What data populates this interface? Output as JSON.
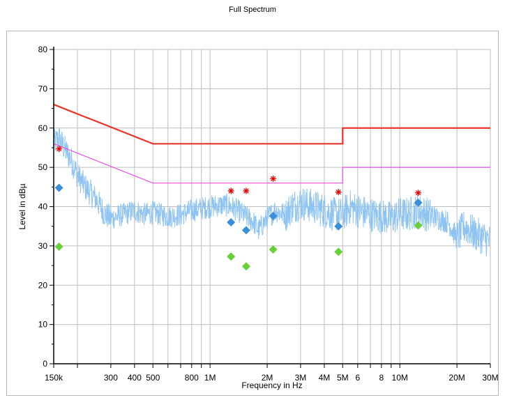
{
  "chart_data": {
    "type": "line",
    "title": "Full Spectrum",
    "xlabel": "Frequency in Hz",
    "ylabel": "Level in dBµ",
    "x_scale": "log",
    "xlim": [
      150000,
      30000000
    ],
    "ylim": [
      0,
      80
    ],
    "grid": true,
    "x_tick_labels": [
      {
        "f": 150000,
        "label": "150k"
      },
      {
        "f": 300000,
        "label": "300"
      },
      {
        "f": 400000,
        "label": "400"
      },
      {
        "f": 500000,
        "label": "500"
      },
      {
        "f": 800000,
        "label": "800"
      },
      {
        "f": 1000000,
        "label": "1M"
      },
      {
        "f": 2000000,
        "label": "2M"
      },
      {
        "f": 3000000,
        "label": "3M"
      },
      {
        "f": 4000000,
        "label": "4M"
      },
      {
        "f": 5000000,
        "label": "5M"
      },
      {
        "f": 6000000,
        "label": "6"
      },
      {
        "f": 8000000,
        "label": "8"
      },
      {
        "f": 10000000,
        "label": "10M"
      },
      {
        "f": 20000000,
        "label": "20M"
      },
      {
        "f": 30000000,
        "label": "30M"
      }
    ],
    "y_tick_labels": [
      "0",
      "10",
      "20",
      "30",
      "40",
      "50",
      "60",
      "70",
      "80"
    ],
    "colors": {
      "limit_qp": "#e8352c",
      "limit_avg": "#e64ee6",
      "spectrum": "#8fc4f2",
      "qp_points": "#3a8fd9",
      "avg_points": "#6ad038",
      "peak_markers": "#e80000",
      "grid": "#bdbdbd"
    },
    "limit_qp": [
      [
        150000,
        66
      ],
      [
        500000,
        56
      ],
      [
        5000000,
        56
      ],
      [
        5000000,
        60
      ],
      [
        30000000,
        60
      ]
    ],
    "limit_avg": [
      [
        150000,
        56
      ],
      [
        500000,
        46
      ],
      [
        5000000,
        46
      ],
      [
        5000000,
        50
      ],
      [
        30000000,
        50
      ]
    ],
    "spectrum_envelope": [
      [
        150000,
        56
      ],
      [
        160000,
        57.5
      ],
      [
        170000,
        55
      ],
      [
        185000,
        52
      ],
      [
        200000,
        48
      ],
      [
        220000,
        45
      ],
      [
        250000,
        42
      ],
      [
        280000,
        38
      ],
      [
        300000,
        37
      ],
      [
        350000,
        38
      ],
      [
        400000,
        39
      ],
      [
        450000,
        38
      ],
      [
        500000,
        38.5
      ],
      [
        600000,
        37.5
      ],
      [
        700000,
        38
      ],
      [
        800000,
        39
      ],
      [
        900000,
        39.5
      ],
      [
        1000000,
        40
      ],
      [
        1200000,
        40.5
      ],
      [
        1300000,
        40
      ],
      [
        1500000,
        38
      ],
      [
        1700000,
        36
      ],
      [
        1800000,
        34
      ],
      [
        2000000,
        37
      ],
      [
        2200000,
        39
      ],
      [
        2500000,
        38
      ],
      [
        2700000,
        40
      ],
      [
        3000000,
        41
      ],
      [
        3500000,
        40
      ],
      [
        4000000,
        39
      ],
      [
        4500000,
        38
      ],
      [
        5000000,
        38
      ],
      [
        5500000,
        40
      ],
      [
        6000000,
        39
      ],
      [
        7000000,
        38
      ],
      [
        8000000,
        37.5
      ],
      [
        9000000,
        37
      ],
      [
        10000000,
        38
      ],
      [
        11000000,
        38
      ],
      [
        12500000,
        39
      ],
      [
        14000000,
        38
      ],
      [
        16000000,
        37
      ],
      [
        18000000,
        36
      ],
      [
        20000000,
        32
      ],
      [
        22000000,
        35
      ],
      [
        25000000,
        33
      ],
      [
        28000000,
        32
      ],
      [
        30000000,
        31
      ]
    ],
    "peak_markers": [
      [
        160000,
        54.7
      ],
      [
        1290000,
        44
      ],
      [
        1550000,
        44
      ],
      [
        2150000,
        47.1
      ],
      [
        4750000,
        43.7
      ],
      [
        12500000,
        43.5
      ]
    ],
    "qp_points": [
      [
        160000,
        44.8
      ],
      [
        1290000,
        36
      ],
      [
        1550000,
        34
      ],
      [
        2150000,
        37.6
      ],
      [
        4750000,
        35
      ],
      [
        12500000,
        41
      ]
    ],
    "avg_points": [
      [
        160000,
        29.8
      ],
      [
        1290000,
        27.3
      ],
      [
        1550000,
        24.8
      ],
      [
        2150000,
        29.1
      ],
      [
        4750000,
        28.5
      ],
      [
        12500000,
        35.2
      ]
    ]
  }
}
